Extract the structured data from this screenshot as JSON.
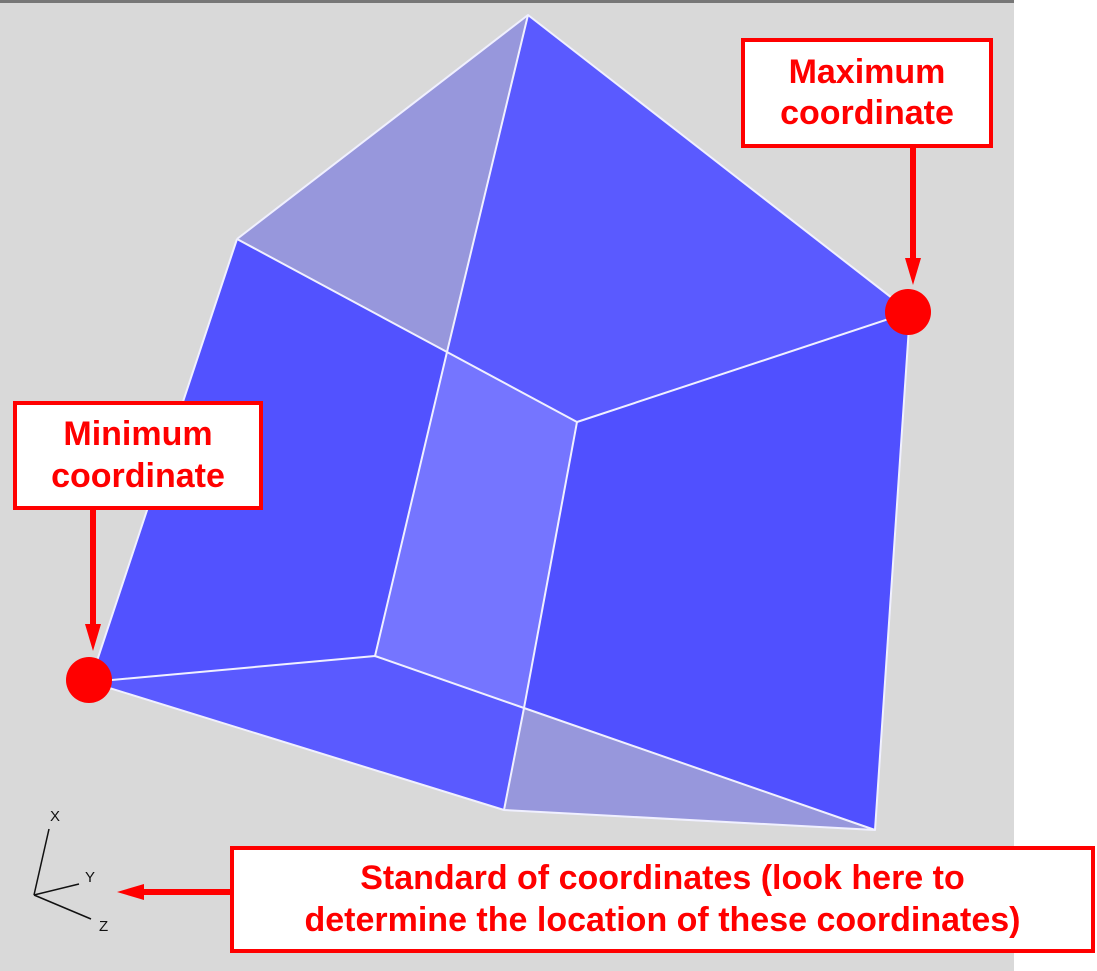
{
  "callouts": {
    "maximum": {
      "line1": "Maximum",
      "line2": "coordinate"
    },
    "minimum": {
      "line1": "Minimum",
      "line2": "coordinate"
    },
    "standard": {
      "line1": "Standard of coordinates (look here to",
      "line2": "determine the location of these coordinates)"
    }
  },
  "axes": {
    "x": "X",
    "y": "Y",
    "z": "Z"
  },
  "colors": {
    "background": "#d9d9d9",
    "face_dark": "#5252ff",
    "face_mid": "#5a5aff",
    "face_light": "#7575ff",
    "face_pale": "#9797dc",
    "edge": "#f0f0ff",
    "accent": "#ff0000"
  }
}
